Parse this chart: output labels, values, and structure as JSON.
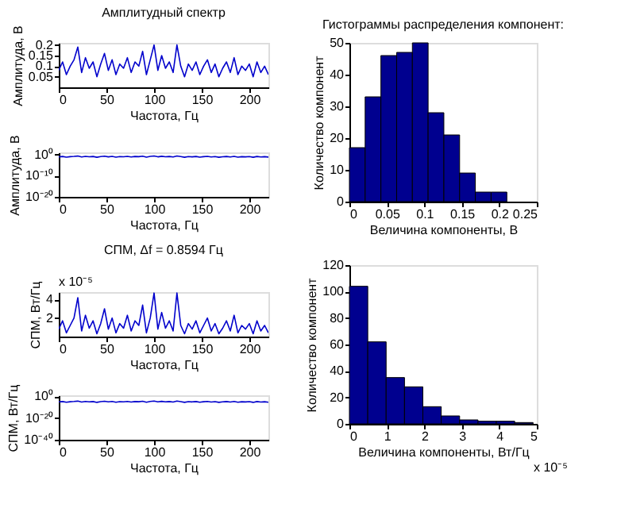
{
  "chart_data": [
    {
      "type": "line",
      "title": "Амплитудный спектр",
      "xlabel": "Частота, Гц",
      "ylabel": "Амплитуда, В",
      "xlim": [
        0,
        220
      ],
      "xticks": [
        0,
        50,
        100,
        150,
        200
      ],
      "ylim": [
        0,
        0.21
      ],
      "yticks": [
        0.05,
        0.1,
        0.15,
        0.2
      ],
      "x": [
        0,
        4,
        8,
        12,
        16,
        20,
        24,
        28,
        32,
        36,
        40,
        44,
        48,
        52,
        56,
        60,
        64,
        68,
        72,
        76,
        80,
        84,
        88,
        92,
        96,
        100,
        104,
        108,
        112,
        116,
        120,
        124,
        128,
        132,
        136,
        140,
        144,
        148,
        152,
        156,
        160,
        164,
        168,
        172,
        176,
        180,
        184,
        188,
        192,
        196,
        200,
        204,
        208,
        212,
        216,
        220
      ],
      "series": [
        {
          "color": "#0000cc",
          "values": [
            0.08,
            0.12,
            0.06,
            0.1,
            0.13,
            0.19,
            0.07,
            0.14,
            0.09,
            0.12,
            0.05,
            0.11,
            0.16,
            0.08,
            0.13,
            0.06,
            0.11,
            0.09,
            0.14,
            0.07,
            0.12,
            0.1,
            0.17,
            0.06,
            0.13,
            0.2,
            0.08,
            0.15,
            0.09,
            0.12,
            0.07,
            0.2,
            0.1,
            0.05,
            0.11,
            0.08,
            0.12,
            0.06,
            0.1,
            0.13,
            0.07,
            0.11,
            0.05,
            0.09,
            0.12,
            0.07,
            0.14,
            0.06,
            0.1,
            0.08,
            0.11,
            0.05,
            0.12,
            0.07,
            0.1,
            0.06
          ]
        }
      ]
    },
    {
      "type": "line",
      "xlabel": "Частота, Гц",
      "ylabel": "Амплитуда, В",
      "log": "y",
      "xlim": [
        0,
        220
      ],
      "xticks": [
        0,
        50,
        100,
        150,
        200
      ],
      "ylim": [
        1e-20,
        10
      ],
      "yticks": [
        {
          "value": 1e-20,
          "label": "10⁻²⁰"
        },
        {
          "value": 1e-10,
          "label": "10⁻¹⁰"
        },
        {
          "value": 1,
          "label": "10⁰"
        }
      ],
      "x": [
        0,
        4,
        8,
        12,
        16,
        20,
        24,
        28,
        32,
        36,
        40,
        44,
        48,
        52,
        56,
        60,
        64,
        68,
        72,
        76,
        80,
        84,
        88,
        92,
        96,
        100,
        104,
        108,
        112,
        116,
        120,
        124,
        128,
        132,
        136,
        140,
        144,
        148,
        152,
        156,
        160,
        164,
        168,
        172,
        176,
        180,
        184,
        188,
        192,
        196,
        200,
        204,
        208,
        212,
        216,
        220
      ],
      "series": [
        {
          "color": "#0000cc",
          "values": [
            0.08,
            0.12,
            0.06,
            0.1,
            0.13,
            0.19,
            0.07,
            0.14,
            0.09,
            0.12,
            0.05,
            0.11,
            0.16,
            0.08,
            0.13,
            0.06,
            0.11,
            0.09,
            0.14,
            0.07,
            0.12,
            0.1,
            0.17,
            0.06,
            0.13,
            0.2,
            0.08,
            0.15,
            0.09,
            0.12,
            0.07,
            0.2,
            0.1,
            0.05,
            0.11,
            0.08,
            0.12,
            0.06,
            0.1,
            0.13,
            0.07,
            0.11,
            0.05,
            0.09,
            0.12,
            0.07,
            0.14,
            0.06,
            0.1,
            0.08,
            0.11,
            0.05,
            0.12,
            0.07,
            0.1,
            0.06
          ]
        }
      ]
    },
    {
      "type": "line",
      "title": "СПМ, Δf = 0.8594 Гц",
      "xlabel": "Частота, Гц",
      "ylabel": "СПМ, Вт/Гц",
      "annotations": [
        "x 10⁻⁵"
      ],
      "xlim": [
        0,
        220
      ],
      "xticks": [
        0,
        50,
        100,
        150,
        200
      ],
      "ylim": [
        0,
        4.8
      ],
      "yticks": [
        2,
        4
      ],
      "x": [
        0,
        4,
        8,
        12,
        16,
        20,
        24,
        28,
        32,
        36,
        40,
        44,
        48,
        52,
        56,
        60,
        64,
        68,
        72,
        76,
        80,
        84,
        88,
        92,
        96,
        100,
        104,
        108,
        112,
        116,
        120,
        124,
        128,
        132,
        136,
        140,
        144,
        148,
        152,
        156,
        160,
        164,
        168,
        172,
        176,
        180,
        184,
        188,
        192,
        196,
        200,
        204,
        208,
        212,
        216,
        220
      ],
      "series": [
        {
          "color": "#0000cc",
          "values": [
            0.8,
            1.7,
            0.4,
            1.2,
            2.0,
            4.2,
            0.6,
            2.3,
            0.9,
            1.7,
            0.3,
            1.4,
            3.0,
            0.8,
            2.0,
            0.4,
            1.4,
            0.9,
            2.3,
            0.6,
            1.7,
            1.2,
            3.4,
            0.4,
            2.0,
            4.7,
            0.8,
            2.6,
            0.9,
            1.7,
            0.6,
            4.7,
            1.2,
            0.3,
            1.4,
            0.8,
            1.7,
            0.4,
            1.2,
            2.0,
            0.6,
            1.4,
            0.3,
            0.9,
            1.7,
            0.6,
            2.3,
            0.4,
            1.2,
            0.8,
            1.4,
            0.3,
            1.7,
            0.6,
            1.2,
            0.4
          ]
        }
      ]
    },
    {
      "type": "line",
      "xlabel": "Частота, Гц",
      "ylabel": "СПМ, Вт/Гц",
      "log": "y",
      "xlim": [
        0,
        220
      ],
      "xticks": [
        0,
        50,
        100,
        150,
        200
      ],
      "ylim": [
        1e-40,
        10
      ],
      "yticks": [
        {
          "value": 1e-40,
          "label": "10⁻⁴⁰"
        },
        {
          "value": 1e-20,
          "label": "10⁻²⁰"
        },
        {
          "value": 1,
          "label": "10⁰"
        }
      ],
      "x": [
        0,
        4,
        8,
        12,
        16,
        20,
        24,
        28,
        32,
        36,
        40,
        44,
        48,
        52,
        56,
        60,
        64,
        68,
        72,
        76,
        80,
        84,
        88,
        92,
        96,
        100,
        104,
        108,
        112,
        116,
        120,
        124,
        128,
        132,
        136,
        140,
        144,
        148,
        152,
        156,
        160,
        164,
        168,
        172,
        176,
        180,
        184,
        188,
        192,
        196,
        200,
        204,
        208,
        212,
        216,
        220
      ],
      "series": [
        {
          "color": "#0000cc",
          "values": [
            8e-06,
            1.7e-05,
            4e-06,
            1.2e-05,
            2e-05,
            4.2e-05,
            6e-06,
            2.3e-05,
            9e-06,
            1.7e-05,
            3e-06,
            1.4e-05,
            3e-05,
            8e-06,
            2e-05,
            4e-06,
            1.4e-05,
            9e-06,
            2.3e-05,
            6e-06,
            1.7e-05,
            1.2e-05,
            3.4e-05,
            4e-06,
            2e-05,
            4.7e-05,
            8e-06,
            2.6e-05,
            9e-06,
            1.7e-05,
            6e-06,
            4.7e-05,
            1.2e-05,
            3e-06,
            1.4e-05,
            8e-06,
            1.7e-05,
            4e-06,
            1.2e-05,
            2e-05,
            6e-06,
            1.4e-05,
            3e-06,
            9e-06,
            1.7e-05,
            6e-06,
            2.3e-05,
            4e-06,
            1.2e-05,
            8e-06,
            1.4e-05,
            3e-06,
            1.7e-05,
            6e-06,
            1.2e-05,
            4e-06
          ]
        }
      ]
    },
    {
      "type": "histogram",
      "title": "Гистограммы распределения компонент:",
      "xlabel": "Величина компоненты, В",
      "ylabel": "Количество компонент",
      "color": "#00008f",
      "xlim": [
        0,
        0.25
      ],
      "xticks": [
        0,
        0.05,
        0.1,
        0.15,
        0.2,
        0.25
      ],
      "ylim": [
        0,
        50
      ],
      "yticks": [
        0,
        10,
        20,
        30,
        40,
        50
      ],
      "bins": [
        0,
        0.021,
        0.042,
        0.063,
        0.084,
        0.105,
        0.126,
        0.147,
        0.168,
        0.189,
        0.21
      ],
      "values": [
        17,
        33,
        46,
        47,
        50,
        28,
        21,
        9,
        3,
        3
      ]
    },
    {
      "type": "histogram",
      "xlabel": "Величина компоненты, Вт/Гц",
      "ylabel": "Количество компонент",
      "annotations": [
        "x 10⁻⁵"
      ],
      "color": "#00008f",
      "xlim": [
        0,
        5
      ],
      "xticks": [
        0,
        1,
        2,
        3,
        4,
        5
      ],
      "ylim": [
        0,
        120
      ],
      "yticks": [
        0,
        20,
        40,
        60,
        80,
        100,
        120
      ],
      "bins": [
        0,
        0.49,
        0.98,
        1.47,
        1.96,
        2.45,
        2.94,
        3.43,
        3.92,
        4.41,
        4.9
      ],
      "values": [
        104,
        62,
        35,
        28,
        13,
        6,
        3,
        2,
        2,
        1
      ]
    }
  ]
}
